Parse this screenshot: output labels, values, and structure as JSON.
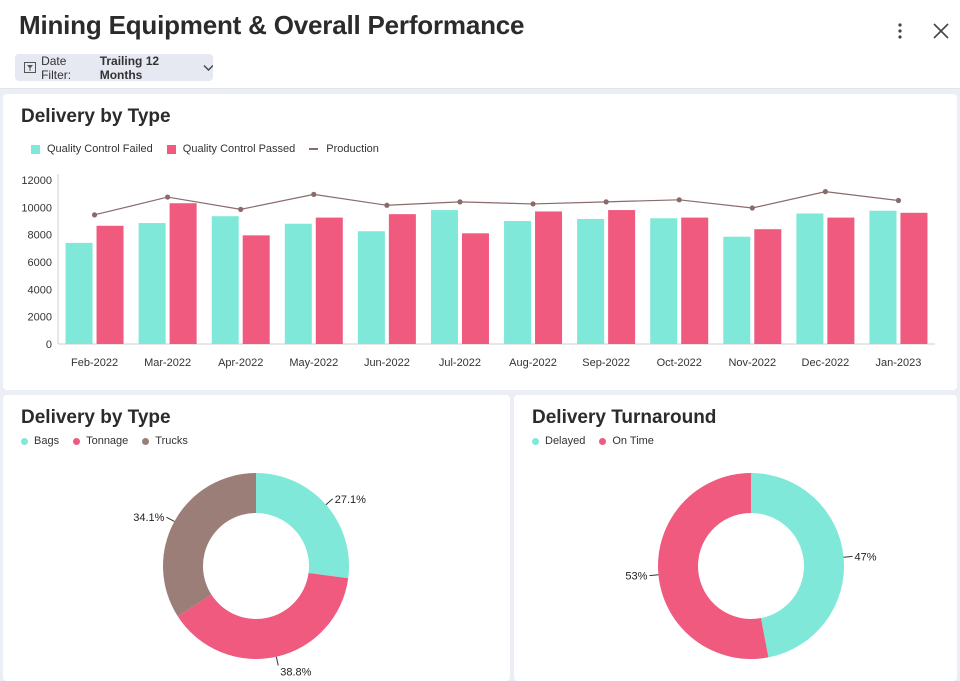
{
  "header": {
    "title": "Mining Equipment & Overall Performance",
    "filter_label": "Date Filter:",
    "filter_value": "Trailing 12 Months"
  },
  "colors": {
    "teal": "#7fe8d8",
    "pink": "#ef5a7e",
    "brown": "#9c7e79",
    "line": "#8a6a6a"
  },
  "icons": [
    "filter-icon",
    "chevron-down-icon",
    "more-vertical-icon",
    "close-icon"
  ],
  "chart_data": [
    {
      "type": "bar",
      "title": "Delivery by Type",
      "categories": [
        "Feb-2022",
        "Mar-2022",
        "Apr-2022",
        "May-2022",
        "Jun-2022",
        "Jul-2022",
        "Aug-2022",
        "Sep-2022",
        "Oct-2022",
        "Nov-2022",
        "Dec-2022",
        "Jan-2023"
      ],
      "series": [
        {
          "name": "Quality Control Failed",
          "kind": "bar",
          "color": "#7fe8d8",
          "values": [
            7400,
            8850,
            9350,
            8800,
            8250,
            9800,
            9000,
            9150,
            9200,
            7850,
            9550,
            9750
          ]
        },
        {
          "name": "Quality Control Passed",
          "kind": "bar",
          "color": "#ef5a7e",
          "values": [
            8650,
            10300,
            7950,
            9250,
            9500,
            8100,
            9700,
            9800,
            9250,
            8400,
            9250,
            9600
          ]
        },
        {
          "name": "Production",
          "kind": "line",
          "color": "#8a6a6a",
          "values": [
            9450,
            10750,
            9850,
            10950,
            10150,
            10400,
            10250,
            10400,
            10550,
            9950,
            11150,
            10500
          ]
        }
      ],
      "yticks": [
        "0",
        "2000",
        "4000",
        "6000",
        "8000",
        "10000",
        "12000"
      ],
      "ylim": [
        0,
        12000
      ],
      "legend_position": "top-left"
    },
    {
      "type": "pie",
      "title": "Delivery by Type",
      "labels": [
        "Bags",
        "Tonnage",
        "Trucks"
      ],
      "values": [
        27.1,
        38.8,
        34.1
      ],
      "value_labels": [
        "27.1%",
        "38.8%",
        "34.1%"
      ],
      "colors": [
        "#7fe8d8",
        "#ef5a7e",
        "#9c7e79"
      ],
      "donut": true,
      "legend_position": "top-left"
    },
    {
      "type": "pie",
      "title": "Delivery Turnaround",
      "labels": [
        "Delayed",
        "On Time"
      ],
      "values": [
        47,
        53
      ],
      "value_labels": [
        "47%",
        "53%"
      ],
      "colors": [
        "#7fe8d8",
        "#ef5a7e"
      ],
      "donut": true,
      "legend_position": "top-left"
    }
  ]
}
